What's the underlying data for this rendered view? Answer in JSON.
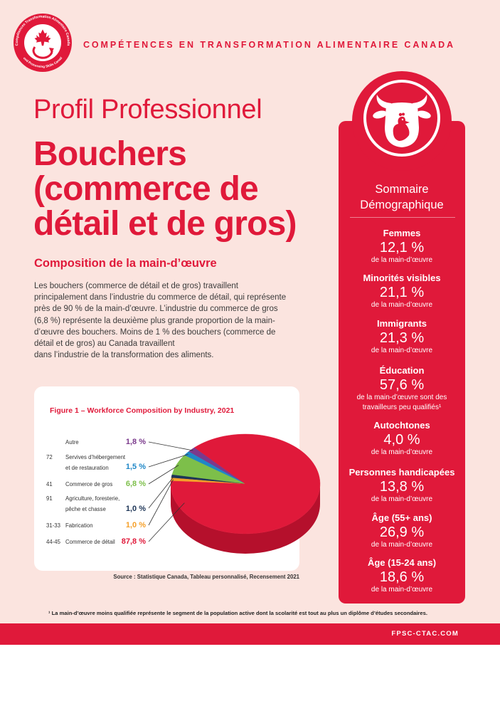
{
  "logo": {
    "ring_top": "Compétences Transformation Alimentaire Canada",
    "ring_bottom": "Food Processing Skills Canada",
    "icon": "maple-leaf-icon"
  },
  "header": {
    "org_name": "COMPÉTENCES EN TRANSFORMATION ALIMENTAIRE CANADA"
  },
  "profile": {
    "kicker": "Profil Professionnel",
    "title_lines": [
      "Bouchers",
      "(commerce de",
      "détail et de gros)"
    ]
  },
  "section": {
    "heading": "Composition de la main-d’œuvre",
    "paragraph_lines": [
      "Les bouchers (commerce de détail et de gros) travaillent",
      "principalement dans l’industrie du commerce de détail, qui représente",
      "près de 90 % de la main-d’œuvre. L’industrie du commerce de gros",
      "(6,8 %) représente la deuxième plus grande proportion de la main-",
      "d’œuvre des bouchers. Moins de 1 % des bouchers (commerce de",
      "détail et de gros) au Canada travaillent",
      "dans l’industrie de la transformation des aliments."
    ]
  },
  "chart_data": {
    "type": "pie",
    "style": "3d",
    "title": "Figure 1 – Workforce Composition by Industry, 2021",
    "slices": [
      {
        "label_lines": [
          "Autre"
        ],
        "value": 1.8,
        "value_label": "1,8 %",
        "color": "#7b3a8c"
      },
      {
        "code": "72",
        "label_lines": [
          "Servives d’hébergement",
          "et de restauration"
        ],
        "value": 1.5,
        "value_label": "1,5 %",
        "color": "#1f87c7"
      },
      {
        "code": "41",
        "label_lines": [
          "Commerce de gros"
        ],
        "value": 6.8,
        "value_label": "6,8 %",
        "color": "#7dbf4a"
      },
      {
        "code": "91",
        "label_lines": [
          "Agriculture, foresterie,",
          "pêche et chasse"
        ],
        "value": 1.0,
        "value_label": "1,0 %",
        "color": "#1d3557"
      },
      {
        "code": "31-33",
        "label_lines": [
          "Fabrication"
        ],
        "value": 1.0,
        "value_label": "1,0 %",
        "color": "#f5a02a"
      },
      {
        "code": "44-45",
        "label_lines": [
          "Commerce de détail"
        ],
        "value": 87.8,
        "value_label": "87,8 %",
        "color": "#e0193a"
      }
    ],
    "source": "Source : Statistique Canada, Tableau personnalisé, Recensement 2021"
  },
  "summary": {
    "icon": "cow-chicken-icon",
    "title_lines": [
      "Sommaire",
      "Démographique"
    ],
    "stats": [
      {
        "label": "Femmes",
        "value": "12,1 %",
        "caption_lines": [
          "de la main-d’œuvre"
        ]
      },
      {
        "label": "Minorités visibles",
        "value": "21,1 %",
        "caption_lines": [
          "de la main-d’œuvre"
        ]
      },
      {
        "label": "Immigrants",
        "value": "21,3 %",
        "caption_lines": [
          "de la main-d’œuvre"
        ]
      },
      {
        "label": "Éducation",
        "value": "57,6 %",
        "caption_lines": [
          "de la main-d’œuvre sont des",
          "travailleurs peu qualifiés¹"
        ]
      },
      {
        "label": "Autochtones",
        "value": "4,0 %",
        "caption_lines": [
          "de la main-d’œuvre"
        ]
      },
      {
        "label": "Personnes handicapées",
        "value": "13,8 %",
        "caption_lines": [
          "de la main-d’œuvre"
        ]
      },
      {
        "label": "Âge (55+ ans)",
        "value": "26,9 %",
        "caption_lines": [
          "de la main-d’œuvre"
        ]
      },
      {
        "label": "Âge (15-24 ans)",
        "value": "18,6 %",
        "caption_lines": [
          "de la main-d’œuvre"
        ]
      }
    ]
  },
  "footnote": "¹ La main-d’œuvre moins qualifiée représente le segment de la population active dont la scolarité est tout au plus un diplôme d’études secondaires.",
  "footer": {
    "website": "FPSC-CTAC.COM"
  },
  "colors": {
    "brand_red": "#e0193a",
    "background": "#fbe4df"
  }
}
